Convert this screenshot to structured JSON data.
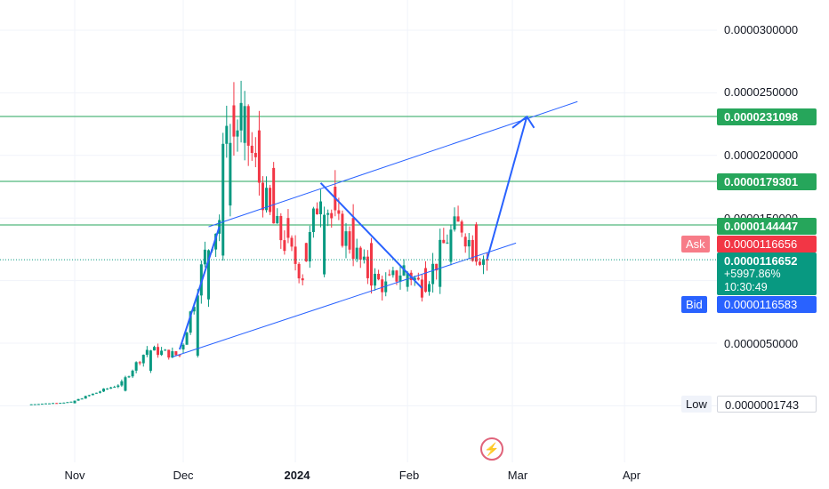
{
  "chart_data": {
    "type": "candlestick",
    "title": "",
    "x_ticks": [
      "Nov",
      "Dec",
      "2024",
      "Feb",
      "Mar",
      "Apr"
    ],
    "x_ticks_bold": [
      "2024"
    ],
    "y_ticks": [
      "0.0000300000",
      "0.0000250000",
      "0.0000200000",
      "0.0000150000",
      "0.0000050000"
    ],
    "ylim": [
      3e-07,
      3.25e-05
    ],
    "grid": true,
    "horizontal_levels": [
      "0.0000231098",
      "0.0000179301",
      "0.0000144447"
    ],
    "ask": {
      "tag": "Ask",
      "value": "0.0000116656"
    },
    "bid": {
      "tag": "Bid",
      "value": "0.0000116583"
    },
    "last": {
      "value": "0.0000116652",
      "change": "+5997.86%",
      "countdown": "10:30:49"
    },
    "low": {
      "tag": "Low",
      "value": "0.0000001743"
    },
    "colors": {
      "up": "#089981",
      "down": "#f23645",
      "levels": "#26a65b",
      "drawings": "#2962ff"
    },
    "approx_candles": [
      {
        "date": "2023-10-20",
        "open": 1e-07,
        "close": 1e-07
      },
      {
        "date": "2023-11-01",
        "open": 2e-07,
        "close": 3e-07
      },
      {
        "date": "2023-11-15",
        "open": 1.2e-06,
        "close": 1.8e-06
      },
      {
        "date": "2023-11-22",
        "open": 2.8e-06,
        "close": 4.5e-06
      },
      {
        "date": "2023-12-01",
        "open": 4.5e-06,
        "close": 4e-06
      },
      {
        "date": "2023-12-05",
        "open": 4e-06,
        "close": 8.5e-06
      },
      {
        "date": "2023-12-08",
        "open": 8.5e-06,
        "close": 1.2e-05
      },
      {
        "date": "2023-12-12",
        "open": 1.2e-05,
        "close": 1.5e-05
      },
      {
        "date": "2023-12-14",
        "open": 1.6e-05,
        "close": 2.4e-05
      },
      {
        "date": "2023-12-15",
        "open": 2.4e-05,
        "close": 2.1e-05
      },
      {
        "date": "2023-12-18",
        "open": 2.1e-05,
        "close": 2.3e-05
      },
      {
        "date": "2023-12-22",
        "open": 2.2e-05,
        "close": 1.9e-05
      },
      {
        "date": "2023-12-26",
        "open": 1.9e-05,
        "close": 1.5e-05
      },
      {
        "date": "2023-12-30",
        "open": 1.5e-05,
        "close": 1.3e-05
      },
      {
        "date": "2024-01-04",
        "open": 1.3e-05,
        "close": 1.05e-05
      },
      {
        "date": "2024-01-09",
        "open": 1.05e-05,
        "close": 1.75e-05
      },
      {
        "date": "2024-01-12",
        "open": 1.75e-05,
        "close": 1.5e-05
      },
      {
        "date": "2024-01-17",
        "open": 1.5e-05,
        "close": 1.3e-05
      },
      {
        "date": "2024-01-22",
        "open": 1.3e-05,
        "close": 1.05e-05
      },
      {
        "date": "2024-01-27",
        "open": 1.05e-05,
        "close": 9.5e-06
      },
      {
        "date": "2024-02-01",
        "open": 9.5e-06,
        "close": 1.1e-05
      },
      {
        "date": "2024-02-06",
        "open": 1.1e-05,
        "close": 9.5e-06
      },
      {
        "date": "2024-02-10",
        "open": 9.5e-06,
        "close": 1.15e-05
      },
      {
        "date": "2024-02-13",
        "open": 1.15e-05,
        "close": 1.35e-05
      },
      {
        "date": "2024-02-17",
        "open": 1.35e-05,
        "close": 1.45e-05
      },
      {
        "date": "2024-02-20",
        "open": 1.45e-05,
        "close": 1.25e-05
      },
      {
        "date": "2024-02-24",
        "open": 1.25e-05,
        "close": 1.17e-05
      }
    ]
  }
}
